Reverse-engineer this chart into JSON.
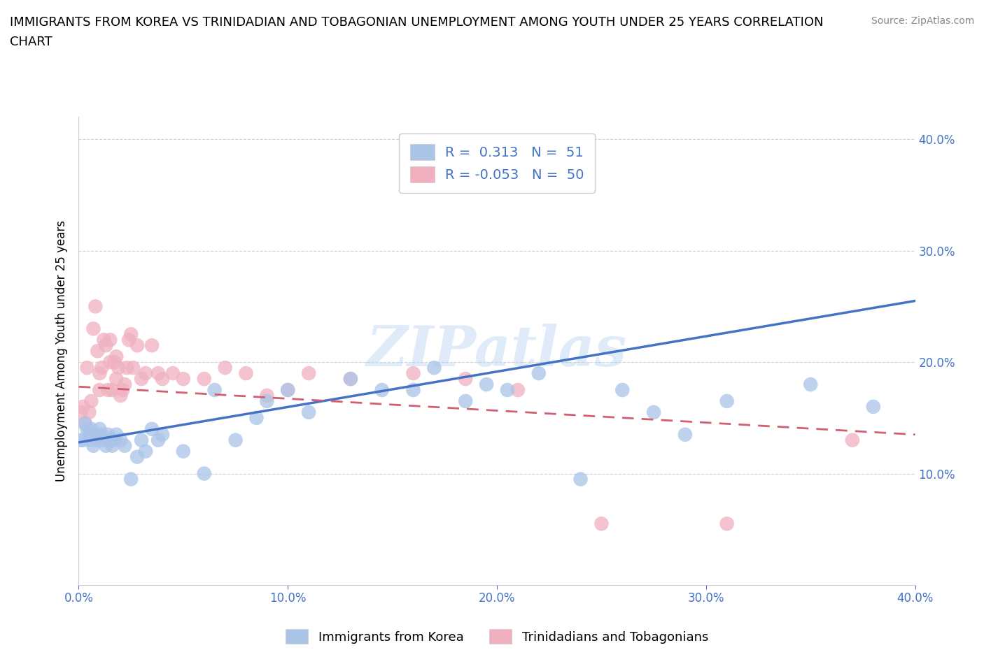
{
  "title_line1": "IMMIGRANTS FROM KOREA VS TRINIDADIAN AND TOBAGONIAN UNEMPLOYMENT AMONG YOUTH UNDER 25 YEARS CORRELATION",
  "title_line2": "CHART",
  "source": "Source: ZipAtlas.com",
  "ylabel": "Unemployment Among Youth under 25 years",
  "xlim": [
    0.0,
    0.4
  ],
  "ylim": [
    0.0,
    0.42
  ],
  "xticks": [
    0.0,
    0.1,
    0.2,
    0.3,
    0.4
  ],
  "yticks": [
    0.1,
    0.2,
    0.3,
    0.4
  ],
  "xtick_labels": [
    "0.0%",
    "10.0%",
    "20.0%",
    "30.0%",
    "40.0%"
  ],
  "ytick_labels_right": [
    "10.0%",
    "20.0%",
    "30.0%",
    "40.0%"
  ],
  "korea_color": "#aac4e8",
  "trinidad_color": "#f0b0c0",
  "korea_line_color": "#4472c4",
  "trinidad_line_color": "#d06070",
  "korea_R": 0.313,
  "korea_N": 51,
  "trinidad_R": -0.053,
  "trinidad_N": 50,
  "legend_label_korea": "Immigrants from Korea",
  "legend_label_trinidad": "Trinidadians and Tobagonians",
  "watermark": "ZIPatlas",
  "korea_x": [
    0.001,
    0.002,
    0.003,
    0.004,
    0.005,
    0.006,
    0.006,
    0.007,
    0.008,
    0.009,
    0.01,
    0.011,
    0.012,
    0.013,
    0.014,
    0.015,
    0.016,
    0.017,
    0.018,
    0.02,
    0.022,
    0.025,
    0.028,
    0.03,
    0.032,
    0.035,
    0.038,
    0.04,
    0.05,
    0.06,
    0.065,
    0.075,
    0.085,
    0.09,
    0.1,
    0.11,
    0.13,
    0.145,
    0.16,
    0.17,
    0.185,
    0.195,
    0.205,
    0.22,
    0.24,
    0.26,
    0.275,
    0.29,
    0.31,
    0.35,
    0.38
  ],
  "korea_y": [
    0.13,
    0.13,
    0.145,
    0.14,
    0.135,
    0.13,
    0.14,
    0.125,
    0.135,
    0.13,
    0.14,
    0.135,
    0.13,
    0.125,
    0.135,
    0.13,
    0.125,
    0.13,
    0.135,
    0.13,
    0.125,
    0.095,
    0.115,
    0.13,
    0.12,
    0.14,
    0.13,
    0.135,
    0.12,
    0.1,
    0.175,
    0.13,
    0.15,
    0.165,
    0.175,
    0.155,
    0.185,
    0.175,
    0.175,
    0.195,
    0.165,
    0.18,
    0.175,
    0.19,
    0.095,
    0.175,
    0.155,
    0.135,
    0.165,
    0.18,
    0.16
  ],
  "trinidad_x": [
    0.001,
    0.002,
    0.003,
    0.004,
    0.005,
    0.006,
    0.007,
    0.008,
    0.009,
    0.01,
    0.01,
    0.011,
    0.012,
    0.013,
    0.014,
    0.015,
    0.015,
    0.016,
    0.017,
    0.018,
    0.018,
    0.019,
    0.02,
    0.021,
    0.022,
    0.023,
    0.024,
    0.025,
    0.026,
    0.028,
    0.03,
    0.032,
    0.035,
    0.038,
    0.04,
    0.045,
    0.05,
    0.06,
    0.07,
    0.08,
    0.09,
    0.1,
    0.11,
    0.13,
    0.16,
    0.185,
    0.21,
    0.25,
    0.31,
    0.37
  ],
  "trinidad_y": [
    0.155,
    0.16,
    0.145,
    0.195,
    0.155,
    0.165,
    0.23,
    0.25,
    0.21,
    0.175,
    0.19,
    0.195,
    0.22,
    0.215,
    0.175,
    0.2,
    0.22,
    0.175,
    0.2,
    0.185,
    0.205,
    0.195,
    0.17,
    0.175,
    0.18,
    0.195,
    0.22,
    0.225,
    0.195,
    0.215,
    0.185,
    0.19,
    0.215,
    0.19,
    0.185,
    0.19,
    0.185,
    0.185,
    0.195,
    0.19,
    0.17,
    0.175,
    0.19,
    0.185,
    0.19,
    0.185,
    0.175,
    0.055,
    0.055,
    0.13
  ],
  "korea_line_x0": 0.0,
  "korea_line_y0": 0.128,
  "korea_line_x1": 0.4,
  "korea_line_y1": 0.255,
  "trinidad_line_x0": 0.0,
  "trinidad_line_y0": 0.178,
  "trinidad_line_x1": 0.4,
  "trinidad_line_y1": 0.135
}
